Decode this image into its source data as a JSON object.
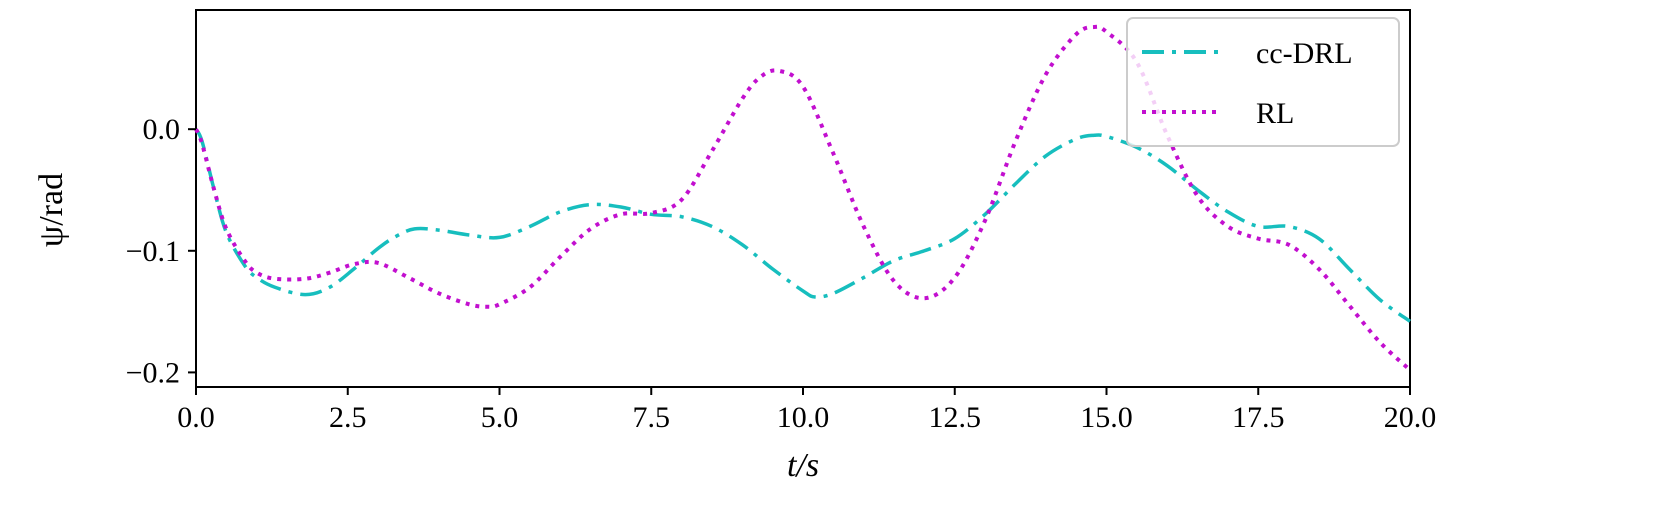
{
  "chart_data": {
    "type": "line",
    "xlabel": "t/s",
    "ylabel": "ψ/rad",
    "xlim": [
      0.0,
      20.0
    ],
    "ylim": [
      -0.212,
      0.098
    ],
    "x_ticks": [
      "0.0",
      "2.5",
      "5.0",
      "7.5",
      "10.0",
      "12.5",
      "15.0",
      "17.5",
      "20.0"
    ],
    "y_ticks": [
      "0.0",
      "−0.1",
      "−0.2"
    ],
    "grid": false,
    "legend_position": "top-right",
    "series": [
      {
        "name": "cc-DRL",
        "color": "#17bebe",
        "style": "dashdot",
        "x": [
          0,
          0.1,
          0.3,
          0.5,
          0.8,
          1.0,
          1.3,
          1.8,
          2.2,
          2.6,
          3.0,
          3.3,
          3.6,
          4.0,
          4.5,
          5.0,
          5.5,
          6.0,
          6.5,
          7.0,
          7.5,
          8.0,
          8.5,
          9.0,
          9.5,
          10.0,
          10.2,
          10.5,
          11.0,
          11.5,
          12.0,
          12.5,
          13.0,
          13.5,
          14.0,
          14.5,
          14.8,
          15.0,
          15.5,
          16.0,
          16.5,
          17.0,
          17.5,
          18.0,
          18.5,
          19.0,
          19.5,
          20.0
        ],
        "y": [
          0.0,
          -0.01,
          -0.05,
          -0.085,
          -0.112,
          -0.122,
          -0.13,
          -0.136,
          -0.13,
          -0.115,
          -0.098,
          -0.088,
          -0.082,
          -0.083,
          -0.087,
          -0.089,
          -0.08,
          -0.068,
          -0.062,
          -0.064,
          -0.07,
          -0.072,
          -0.08,
          -0.095,
          -0.115,
          -0.133,
          -0.138,
          -0.135,
          -0.122,
          -0.108,
          -0.1,
          -0.09,
          -0.07,
          -0.045,
          -0.022,
          -0.008,
          -0.005,
          -0.006,
          -0.015,
          -0.03,
          -0.05,
          -0.068,
          -0.08,
          -0.08,
          -0.09,
          -0.115,
          -0.14,
          -0.158
        ]
      },
      {
        "name": "RL",
        "color": "#c20fcf",
        "style": "dotted",
        "x": [
          0,
          0.1,
          0.3,
          0.5,
          0.8,
          1.0,
          1.3,
          1.8,
          2.2,
          2.6,
          3.0,
          3.5,
          4.0,
          4.5,
          4.8,
          5.0,
          5.5,
          6.0,
          6.5,
          7.0,
          7.5,
          8.0,
          8.5,
          9.0,
          9.3,
          9.6,
          10.0,
          10.5,
          11.0,
          11.5,
          12.0,
          12.5,
          13.0,
          13.5,
          14.0,
          14.5,
          14.8,
          15.0,
          15.5,
          16.0,
          16.5,
          17.0,
          17.5,
          18.0,
          18.5,
          19.0,
          19.5,
          20.0
        ],
        "y": [
          0.0,
          -0.012,
          -0.05,
          -0.082,
          -0.108,
          -0.118,
          -0.123,
          -0.123,
          -0.118,
          -0.111,
          -0.11,
          -0.122,
          -0.135,
          -0.144,
          -0.146,
          -0.144,
          -0.13,
          -0.105,
          -0.082,
          -0.07,
          -0.069,
          -0.058,
          -0.018,
          0.025,
          0.043,
          0.048,
          0.035,
          -0.02,
          -0.08,
          -0.125,
          -0.139,
          -0.122,
          -0.075,
          -0.01,
          0.045,
          0.078,
          0.084,
          0.08,
          0.055,
          -0.005,
          -0.055,
          -0.08,
          -0.09,
          -0.095,
          -0.115,
          -0.145,
          -0.175,
          -0.198
        ]
      }
    ]
  }
}
